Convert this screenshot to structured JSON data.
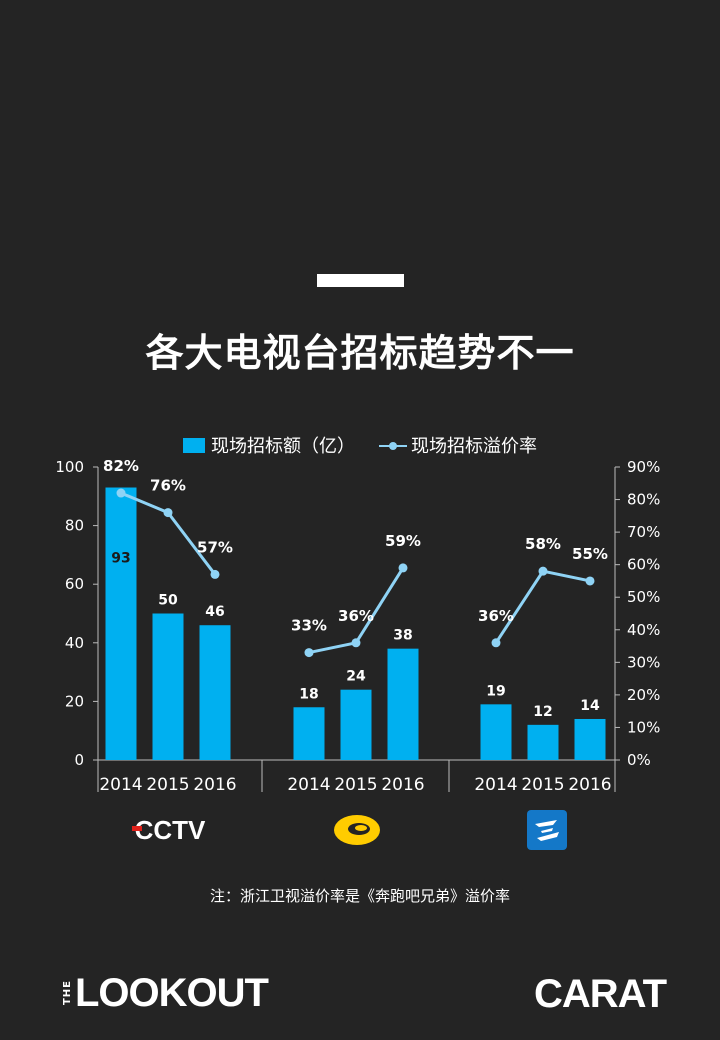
{
  "title": "各大电视台招标趋势不一",
  "legend": {
    "bar": "现场招标额（亿）",
    "line": "现场招标溢价率"
  },
  "note": "注：浙江卫视溢价率是《奔跑吧兄弟》溢价率",
  "brands": {
    "the": "THE",
    "lookout": "LOOKOUT",
    "carat": "CARAT",
    "cctv": "CCTV"
  },
  "icons": {
    "cctv": "cctv-logo-icon",
    "hunan": "hunan-tv-logo-icon",
    "zhejiang": "zhejiang-tv-logo-icon"
  },
  "colors": {
    "bar": "#00b0f0",
    "line": "#8fd3f5"
  },
  "chart_data": {
    "type": "bar",
    "groups": [
      {
        "channel": "CCTV",
        "categories": [
          "2014",
          "2015",
          "2016"
        ]
      },
      {
        "channel": "湖南卫视",
        "categories": [
          "2014",
          "2015",
          "2016"
        ]
      },
      {
        "channel": "浙江卫视",
        "categories": [
          "2014",
          "2015",
          "2016"
        ]
      }
    ],
    "categories": [
      "2014",
      "2015",
      "2016",
      "2014",
      "2015",
      "2016",
      "2014",
      "2015",
      "2016"
    ],
    "series": [
      {
        "name": "现场招标额（亿）",
        "type": "bar",
        "axis": "left",
        "values": [
          93,
          50,
          46,
          18,
          24,
          38,
          19,
          12,
          14
        ]
      },
      {
        "name": "现场招标溢价率",
        "type": "line",
        "axis": "right",
        "values": [
          82,
          76,
          57,
          33,
          36,
          59,
          36,
          58,
          55
        ]
      }
    ],
    "ylim": [
      0,
      100
    ],
    "yticks": [
      0,
      20,
      40,
      60,
      80,
      100
    ],
    "y2lim": [
      0,
      90
    ],
    "y2ticks": [
      "0%",
      "10%",
      "20%",
      "30%",
      "40%",
      "50%",
      "60%",
      "70%",
      "80%",
      "90%"
    ],
    "legend": "top"
  }
}
